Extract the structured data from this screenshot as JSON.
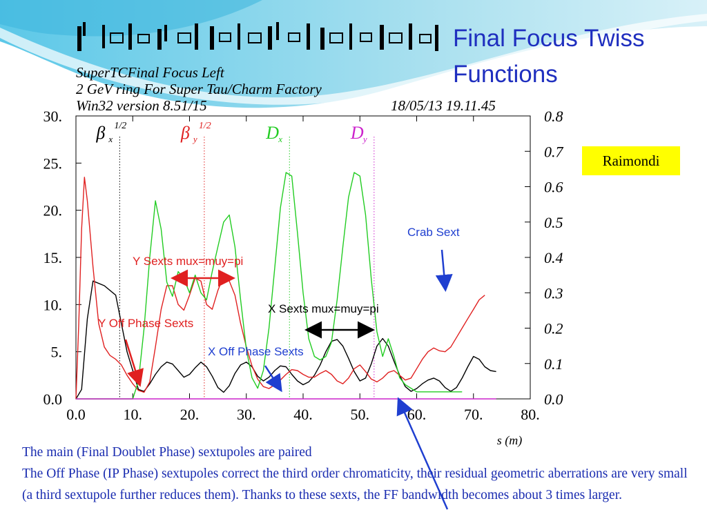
{
  "slide": {
    "title_line1": "Final Focus Twiss",
    "title_line2": "Functions",
    "author_box": "Raimondi",
    "body_lines": [
      "The main (Final Doublet Phase) sextupoles are paired",
      "The Off Phase (IP Phase) sextupoles correct the third order chromaticity, their residual geometric aberrations are very small (a third sextupole further reduces them). Thanks to these sexts, the FF bandwidth becomes about 3 times larger."
    ],
    "colors": {
      "title": "#1f2fbf",
      "body": "#1a2cb0",
      "highlight": "#ffff00"
    }
  },
  "plot_header": {
    "line1": "SuperTCFinal Focus Left",
    "line2": "2 GeV ring For Super Tau/Charm Factory",
    "line3": "Win32 version 8.51/15",
    "date": "18/05/13  19.11.45"
  },
  "chart_data": {
    "type": "line",
    "xlabel": "s (m)",
    "xlim": [
      0,
      80
    ],
    "ylim_left": [
      0,
      30
    ],
    "ylim_right": [
      0,
      0.8
    ],
    "x_ticks": [
      "0.0",
      "10.",
      "20.",
      "30.",
      "40.",
      "50.",
      "60.",
      "70.",
      "80."
    ],
    "y_left_ticks": [
      "0.0",
      "5.",
      "10.",
      "15.",
      "20.",
      "25.",
      "30."
    ],
    "y_right_ticks": [
      "0.0",
      "0.1",
      "0.2",
      "0.3",
      "0.4",
      "0.5",
      "0.6",
      "0.7",
      "0.8"
    ],
    "legend": [
      {
        "symbol": "β",
        "sub": "x",
        "sup": "1/2",
        "color": "#000000",
        "marker_x": 7.7
      },
      {
        "symbol": "β",
        "sub": "y",
        "sup": "1/2",
        "color": "#e02020",
        "marker_x": 22.6
      },
      {
        "symbol": "D",
        "sub": "x",
        "sup": "",
        "color": "#22cc22",
        "marker_x": 37.6
      },
      {
        "symbol": "D",
        "sub": "y",
        "sup": "",
        "color": "#cc22cc",
        "marker_x": 52.5
      }
    ],
    "series": [
      {
        "axis": "left",
        "color": "#000000",
        "points": [
          [
            0,
            0
          ],
          [
            1,
            1
          ],
          [
            2,
            8.5
          ],
          [
            3,
            12.5
          ],
          [
            5,
            12
          ],
          [
            7,
            11
          ],
          [
            8,
            8
          ],
          [
            9,
            5
          ],
          [
            10,
            3
          ],
          [
            11,
            1
          ],
          [
            12,
            0.8
          ],
          [
            13,
            1.6
          ],
          [
            14,
            2.6
          ],
          [
            15,
            3.4
          ],
          [
            16,
            3.9
          ],
          [
            17,
            3.7
          ],
          [
            18,
            3
          ],
          [
            19,
            2.3
          ],
          [
            20,
            2.6
          ],
          [
            21,
            3.3
          ],
          [
            22,
            3.9
          ],
          [
            23,
            3.4
          ],
          [
            24,
            2.4
          ],
          [
            25,
            1.2
          ],
          [
            26,
            0.7
          ],
          [
            27,
            1.4
          ],
          [
            28,
            2.7
          ],
          [
            29,
            3.6
          ],
          [
            30,
            3.9
          ],
          [
            31,
            3.4
          ],
          [
            32,
            2.4
          ],
          [
            33,
            1.9
          ],
          [
            34,
            2.3
          ],
          [
            35,
            3
          ],
          [
            36,
            3.5
          ],
          [
            37,
            3.4
          ],
          [
            38,
            2.6
          ],
          [
            39,
            1.9
          ],
          [
            40,
            1.5
          ],
          [
            41,
            1.8
          ],
          [
            42,
            2.5
          ],
          [
            43,
            3.6
          ],
          [
            44,
            5
          ],
          [
            45,
            6.1
          ],
          [
            46,
            6.3
          ],
          [
            47,
            5.6
          ],
          [
            48,
            4.3
          ],
          [
            49,
            2.9
          ],
          [
            50,
            1.9
          ],
          [
            51,
            2.2
          ],
          [
            52,
            3.7
          ],
          [
            53,
            5.6
          ],
          [
            54,
            6.4
          ],
          [
            55,
            5.6
          ],
          [
            56,
            4
          ],
          [
            57,
            2.5
          ],
          [
            58,
            1.3
          ],
          [
            59,
            0.8
          ],
          [
            60,
            1.1
          ],
          [
            61,
            1.6
          ],
          [
            62,
            2
          ],
          [
            63,
            2.2
          ],
          [
            64,
            1.9
          ],
          [
            65,
            1.2
          ],
          [
            66,
            0.8
          ],
          [
            67,
            1.2
          ],
          [
            68,
            2.2
          ],
          [
            69,
            3.4
          ],
          [
            70,
            4.5
          ],
          [
            71,
            4.2
          ],
          [
            72,
            3.4
          ],
          [
            73,
            3
          ],
          [
            74,
            2.9
          ]
        ]
      },
      {
        "axis": "left",
        "color": "#e02020",
        "points": [
          [
            0,
            0
          ],
          [
            0.5,
            8
          ],
          [
            1,
            18
          ],
          [
            1.5,
            23.5
          ],
          [
            2,
            21
          ],
          [
            3,
            14
          ],
          [
            4,
            8
          ],
          [
            5,
            5.5
          ],
          [
            6,
            4.6
          ],
          [
            7,
            4.2
          ],
          [
            8,
            3.6
          ],
          [
            9,
            2.5
          ],
          [
            10,
            1.6
          ],
          [
            11,
            0.9
          ],
          [
            12,
            0.7
          ],
          [
            13,
            1.8
          ],
          [
            14,
            5.5
          ],
          [
            15,
            9.5
          ],
          [
            16,
            12
          ],
          [
            17,
            12
          ],
          [
            18,
            10
          ],
          [
            19,
            9.4
          ],
          [
            20,
            11
          ],
          [
            21,
            12.8
          ],
          [
            22,
            12.5
          ],
          [
            23,
            10
          ],
          [
            24,
            9.5
          ],
          [
            25,
            11.5
          ],
          [
            26,
            13
          ],
          [
            27,
            12.5
          ],
          [
            28,
            11
          ],
          [
            29,
            8
          ],
          [
            30,
            5.5
          ],
          [
            31,
            3.5
          ],
          [
            32,
            2.1
          ],
          [
            33,
            1.3
          ],
          [
            34,
            1.1
          ],
          [
            35,
            1.5
          ],
          [
            36,
            2
          ],
          [
            37,
            2.6
          ],
          [
            38,
            3.1
          ],
          [
            39,
            3
          ],
          [
            40,
            2.6
          ],
          [
            41,
            2.3
          ],
          [
            42,
            2.3
          ],
          [
            43,
            2.7
          ],
          [
            44,
            3
          ],
          [
            45,
            2.6
          ],
          [
            46,
            1.9
          ],
          [
            47,
            1.6
          ],
          [
            48,
            2.2
          ],
          [
            49,
            3.2
          ],
          [
            50,
            3.6
          ],
          [
            51,
            2.9
          ],
          [
            52,
            2.1
          ],
          [
            53,
            1.8
          ],
          [
            54,
            2.2
          ],
          [
            55,
            2.8
          ],
          [
            56,
            3
          ],
          [
            57,
            2.5
          ],
          [
            58,
            2
          ],
          [
            59,
            2.2
          ],
          [
            60,
            3.2
          ],
          [
            61,
            4.2
          ],
          [
            62,
            5
          ],
          [
            63,
            5.4
          ],
          [
            64,
            5.1
          ],
          [
            65,
            5
          ],
          [
            66,
            5.5
          ],
          [
            67,
            6.5
          ],
          [
            68,
            7.5
          ],
          [
            69,
            8.5
          ],
          [
            70,
            9.5
          ],
          [
            71,
            10.5
          ],
          [
            72,
            11
          ]
        ]
      },
      {
        "axis": "right",
        "color": "#22cc22",
        "points": [
          [
            0,
            0
          ],
          [
            10,
            0
          ],
          [
            11,
            0.05
          ],
          [
            12,
            0.2
          ],
          [
            13,
            0.4
          ],
          [
            14,
            0.56
          ],
          [
            15,
            0.48
          ],
          [
            16,
            0.33
          ],
          [
            17,
            0.29
          ],
          [
            18,
            0.36
          ],
          [
            19,
            0.34
          ],
          [
            20,
            0.3
          ],
          [
            21,
            0.35
          ],
          [
            22,
            0.3
          ],
          [
            23,
            0.28
          ],
          [
            24,
            0.36
          ],
          [
            25,
            0.43
          ],
          [
            26,
            0.5
          ],
          [
            27,
            0.52
          ],
          [
            28,
            0.43
          ],
          [
            29,
            0.28
          ],
          [
            30,
            0.14
          ],
          [
            31,
            0.06
          ],
          [
            32,
            0.03
          ],
          [
            33,
            0.08
          ],
          [
            34,
            0.2
          ],
          [
            35,
            0.37
          ],
          [
            36,
            0.54
          ],
          [
            37,
            0.64
          ],
          [
            38,
            0.63
          ],
          [
            39,
            0.47
          ],
          [
            40,
            0.3
          ],
          [
            41,
            0.17
          ],
          [
            42,
            0.12
          ],
          [
            43,
            0.11
          ],
          [
            44,
            0.12
          ],
          [
            45,
            0.16
          ],
          [
            46,
            0.28
          ],
          [
            47,
            0.43
          ],
          [
            48,
            0.57
          ],
          [
            49,
            0.64
          ],
          [
            50,
            0.63
          ],
          [
            51,
            0.52
          ],
          [
            52,
            0.34
          ],
          [
            53,
            0.19
          ],
          [
            54,
            0.12
          ],
          [
            55,
            0.17
          ],
          [
            56,
            0.12
          ],
          [
            57,
            0.06
          ],
          [
            58,
            0.04
          ],
          [
            59,
            0.03
          ],
          [
            60,
            0.02
          ],
          [
            61,
            0.02
          ],
          [
            62,
            0.02
          ],
          [
            63,
            0.02
          ],
          [
            64,
            0.02
          ],
          [
            65,
            0.02
          ],
          [
            66,
            0.02
          ],
          [
            67,
            0.02
          ],
          [
            68,
            0.02
          ]
        ]
      },
      {
        "axis": "right",
        "color": "#cc22cc",
        "points": [
          [
            0,
            0
          ],
          [
            74,
            0
          ]
        ]
      }
    ],
    "annotations": [
      {
        "text": "Y Sexts mux=muy=pi",
        "color": "#e02020"
      },
      {
        "text": "X Sexts mux=muy=pi",
        "color": "#000000"
      },
      {
        "text": "Y Off Phase Sexts",
        "color": "#e02020"
      },
      {
        "text": "X Off Phase Sexts",
        "color": "#1f3fd0"
      },
      {
        "text": "Crab Sext",
        "color": "#1f3fd0"
      }
    ]
  }
}
